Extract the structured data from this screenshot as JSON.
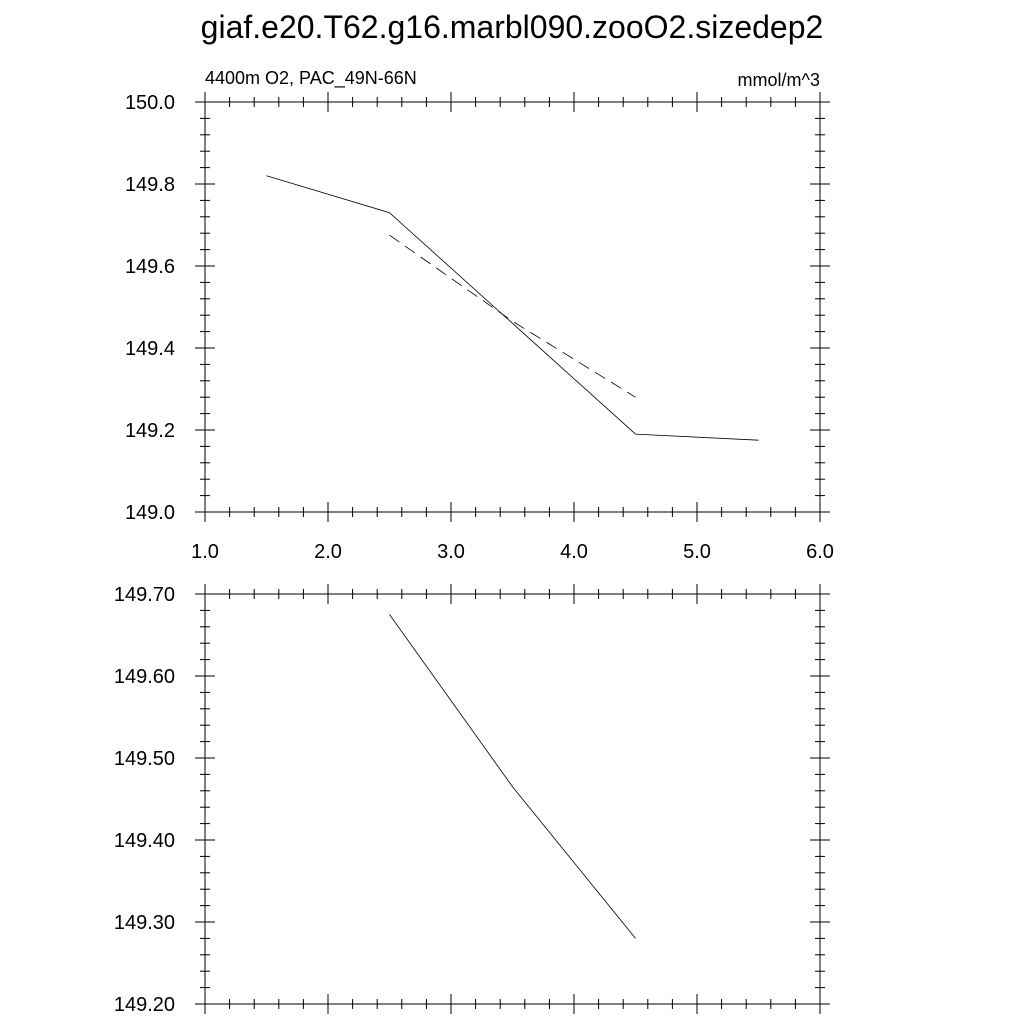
{
  "title": "giaf.e20.T62.g16.marbl090.zooO2.sizedep2",
  "chart_data": [
    {
      "type": "line",
      "left_label": "4400m O2, PAC_49N-66N",
      "right_label": "mmol/m^3",
      "xlim": [
        1.0,
        6.0
      ],
      "ylim": [
        149.0,
        150.0
      ],
      "x_ticks": [
        "1.0",
        "2.0",
        "3.0",
        "4.0",
        "5.0",
        "6.0"
      ],
      "y_ticks": [
        "149.0",
        "149.2",
        "149.4",
        "149.6",
        "149.8",
        "150.0"
      ],
      "grid": false,
      "series": [
        {
          "style": "solid",
          "x": [
            1.5,
            2.5,
            4.5,
            5.5
          ],
          "y": [
            149.82,
            149.73,
            149.19,
            149.175
          ]
        },
        {
          "style": "dashed",
          "x": [
            2.5,
            3.5,
            4.5
          ],
          "y": [
            149.675,
            149.465,
            149.28
          ]
        }
      ]
    },
    {
      "type": "line",
      "xlim": [
        1.0,
        6.0
      ],
      "ylim": [
        149.2,
        149.7
      ],
      "x_ticks": [
        "",
        "",
        "",
        "",
        "",
        ""
      ],
      "y_ticks": [
        "149.20",
        "149.30",
        "149.40",
        "149.50",
        "149.60",
        "149.70"
      ],
      "grid": false,
      "series": [
        {
          "style": "solid",
          "x": [
            2.5,
            3.5,
            4.5
          ],
          "y": [
            149.675,
            149.465,
            149.28
          ]
        }
      ]
    }
  ]
}
